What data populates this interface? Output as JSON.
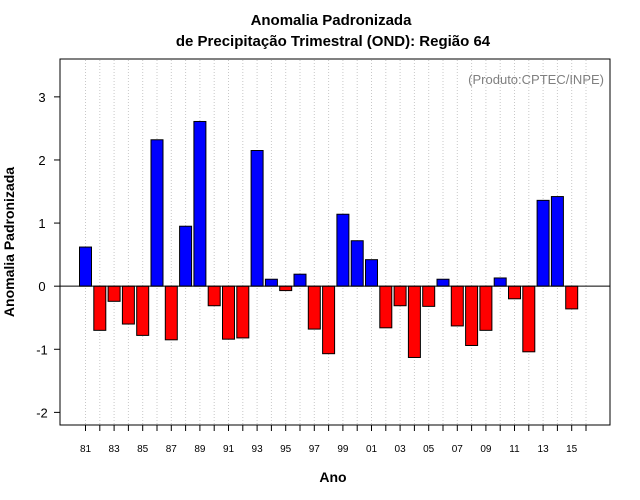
{
  "chart_data": {
    "type": "bar",
    "title": "Anomalia Padronizada",
    "subtitle": "de Precipitação Trimestral (OND): Região 64",
    "xlabel": "Ano",
    "ylabel": "Anomalia Padronizada",
    "credit": "(Produto:CPTEC/INPE)",
    "ylim": [
      -2.2,
      3.6
    ],
    "yticks": [
      -2,
      -1,
      0,
      1,
      2,
      3
    ],
    "year_range": [
      1981,
      2016
    ],
    "x_tick_labels": [
      "81",
      "83",
      "85",
      "87",
      "89",
      "91",
      "93",
      "95",
      "97",
      "99",
      "01",
      "03",
      "05",
      "07",
      "09",
      "11",
      "13",
      "15"
    ],
    "grid": "vertical dotted lines at every year",
    "colors": {
      "positive": "#0000ff",
      "negative": "#ff0000"
    },
    "categories": [
      "1981",
      "1982",
      "1983",
      "1984",
      "1985",
      "1986",
      "1987",
      "1988",
      "1989",
      "1990",
      "1991",
      "1992",
      "1993",
      "1994",
      "1995",
      "1996",
      "1997",
      "1998",
      "1999",
      "2000",
      "2001",
      "2002",
      "2003",
      "2004",
      "2005",
      "2006",
      "2007",
      "2008",
      "2009",
      "2010",
      "2011",
      "2012",
      "2013",
      "2014",
      "2015"
    ],
    "values": [
      0.62,
      -0.7,
      -0.24,
      -0.6,
      -0.78,
      2.32,
      -0.85,
      0.95,
      2.61,
      -0.31,
      -0.84,
      -0.82,
      2.15,
      0.11,
      -0.07,
      0.19,
      -0.68,
      -1.07,
      1.14,
      0.72,
      0.42,
      -0.66,
      -0.31,
      -1.13,
      -0.32,
      0.11,
      -0.63,
      -0.94,
      -0.7,
      0.13,
      -0.2,
      -1.04,
      1.36,
      1.42,
      -0.36
    ]
  }
}
